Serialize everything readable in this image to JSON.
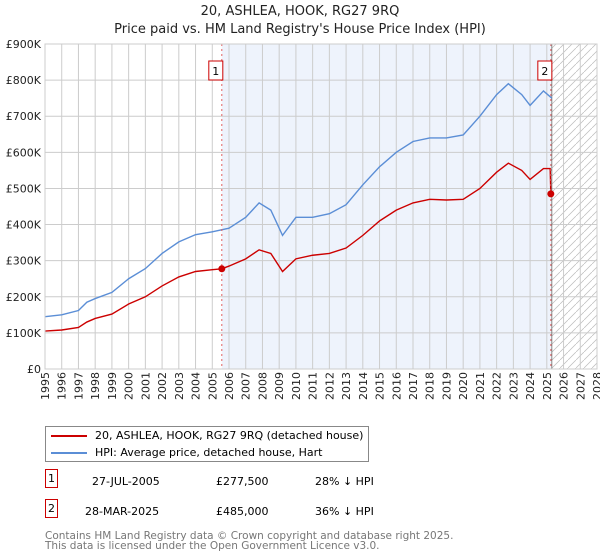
{
  "chart_data": {
    "type": "line",
    "title": "20, ASHLEA, HOOK, RG27 9RQ",
    "subtitle": "Price paid vs. HM Land Registry's House Price Index (HPI)",
    "xlim": [
      1995,
      2028
    ],
    "ylim": [
      0,
      900000
    ],
    "y_ticks": [
      "£0",
      "£100K",
      "£200K",
      "£300K",
      "£400K",
      "£500K",
      "£600K",
      "£700K",
      "£800K",
      "£900K"
    ],
    "x_ticks": [
      "1995",
      "1996",
      "1997",
      "1998",
      "1999",
      "2000",
      "2001",
      "2002",
      "2003",
      "2004",
      "2005",
      "2006",
      "2007",
      "2008",
      "2009",
      "2010",
      "2011",
      "2012",
      "2013",
      "2014",
      "2015",
      "2016",
      "2017",
      "2018",
      "2019",
      "2020",
      "2021",
      "2022",
      "2023",
      "2024",
      "2025",
      "2026",
      "2027",
      "2028"
    ],
    "series": [
      {
        "name": "20, ASHLEA, HOOK, RG27 9RQ (detached house)",
        "color": "#cc0000",
        "x": [
          1995,
          1996,
          1997,
          1997.5,
          1998,
          1999,
          2000,
          2001,
          2002,
          2003,
          2004,
          2005,
          2005.57,
          2006,
          2007,
          2007.8,
          2008.5,
          2009.2,
          2010,
          2011,
          2012,
          2013,
          2014,
          2015,
          2016,
          2017,
          2018,
          2019,
          2020,
          2021,
          2022,
          2022.7,
          2023.5,
          2024,
          2024.8,
          2025.2,
          2025.24
        ],
        "y": [
          105000,
          108000,
          115000,
          130000,
          140000,
          152000,
          180000,
          200000,
          230000,
          255000,
          270000,
          275000,
          277500,
          285000,
          305000,
          330000,
          320000,
          270000,
          305000,
          315000,
          320000,
          335000,
          370000,
          410000,
          440000,
          460000,
          470000,
          468000,
          470000,
          500000,
          545000,
          570000,
          550000,
          525000,
          555000,
          555000,
          485000
        ]
      },
      {
        "name": "HPI: Average price, detached house, Hart",
        "color": "#5b8ed6",
        "x": [
          1995,
          1996,
          1997,
          1997.5,
          1998,
          1999,
          2000,
          2001,
          2002,
          2003,
          2004,
          2005,
          2006,
          2007,
          2007.8,
          2008.5,
          2009.2,
          2010,
          2011,
          2012,
          2013,
          2014,
          2015,
          2016,
          2017,
          2018,
          2019,
          2020,
          2021,
          2022,
          2022.7,
          2023.5,
          2024,
          2024.8,
          2025.3
        ],
        "y": [
          145000,
          150000,
          162000,
          185000,
          195000,
          212000,
          250000,
          278000,
          320000,
          352000,
          372000,
          380000,
          390000,
          420000,
          460000,
          440000,
          370000,
          420000,
          420000,
          430000,
          455000,
          510000,
          560000,
          600000,
          630000,
          640000,
          640000,
          648000,
          700000,
          760000,
          790000,
          760000,
          730000,
          770000,
          750000
        ]
      }
    ],
    "sales": [
      {
        "label": "1",
        "date": "27-JUL-2005",
        "x": 2005.57,
        "price": "£277,500",
        "value": 277500,
        "hpi": "28% ↓ HPI"
      },
      {
        "label": "2",
        "date": "28-MAR-2025",
        "x": 2025.24,
        "price": "£485,000",
        "value": 485000,
        "hpi": "36% ↓ HPI"
      }
    ],
    "hatch_from": 2025.3
  },
  "footer": [
    "Contains HM Land Registry data © Crown copyright and database right 2025.",
    "This data is licensed under the Open Government Licence v3.0."
  ]
}
